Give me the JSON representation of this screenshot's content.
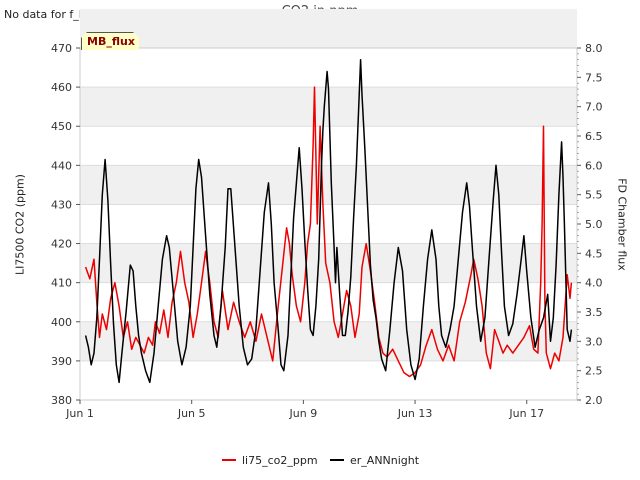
{
  "header": {
    "no_data_text": "No data for f_FD_Flux",
    "title": "CO2 in ppm",
    "badge": "MB_flux"
  },
  "colors": {
    "li75": "#ee0000",
    "ann": "#000000",
    "band": "#f0f0f0",
    "grid": "#dddddd"
  },
  "chart_data": {
    "type": "line",
    "title": "CO2 in ppm",
    "xlabel": "",
    "ylabel": "LI7500 CO2 (ppm)",
    "y2label": "FD Chamber flux",
    "xlim": [
      1,
      18.8
    ],
    "ylim": [
      380,
      470
    ],
    "y2lim": [
      2.0,
      8.0
    ],
    "x_ticks": [
      {
        "value": 1,
        "label": "Jun 1"
      },
      {
        "value": 5,
        "label": "Jun 5"
      },
      {
        "value": 9,
        "label": "Jun 9"
      },
      {
        "value": 13,
        "label": "Jun 13"
      },
      {
        "value": 17,
        "label": "Jun 17"
      }
    ],
    "y_ticks": [
      380,
      390,
      400,
      410,
      420,
      430,
      440,
      450,
      460,
      470
    ],
    "y2_ticks": [
      "2.0",
      "2.5",
      "3.0",
      "3.5",
      "4.0",
      "4.5",
      "5.0",
      "5.5",
      "6.0",
      "6.5",
      "7.0",
      "7.5",
      "8.0"
    ],
    "legend_position": "bottom-center",
    "series": [
      {
        "name": "li75_co2_ppm",
        "axis": "left",
        "points": [
          [
            1.2,
            414
          ],
          [
            1.35,
            411
          ],
          [
            1.5,
            416
          ],
          [
            1.6,
            405
          ],
          [
            1.7,
            396
          ],
          [
            1.8,
            402
          ],
          [
            1.95,
            398
          ],
          [
            2.1,
            406
          ],
          [
            2.25,
            410
          ],
          [
            2.4,
            404
          ],
          [
            2.55,
            396
          ],
          [
            2.7,
            400
          ],
          [
            2.85,
            393
          ],
          [
            3.0,
            396
          ],
          [
            3.15,
            394
          ],
          [
            3.3,
            392
          ],
          [
            3.45,
            396
          ],
          [
            3.6,
            394
          ],
          [
            3.7,
            400
          ],
          [
            3.85,
            397
          ],
          [
            4.0,
            403
          ],
          [
            4.15,
            396
          ],
          [
            4.3,
            405
          ],
          [
            4.45,
            410
          ],
          [
            4.6,
            418
          ],
          [
            4.75,
            410
          ],
          [
            4.9,
            405
          ],
          [
            5.05,
            396
          ],
          [
            5.2,
            402
          ],
          [
            5.35,
            410
          ],
          [
            5.5,
            418
          ],
          [
            5.65,
            410
          ],
          [
            5.8,
            400
          ],
          [
            5.95,
            396
          ],
          [
            6.1,
            408
          ],
          [
            6.3,
            398
          ],
          [
            6.5,
            405
          ],
          [
            6.7,
            400
          ],
          [
            6.9,
            396
          ],
          [
            7.1,
            400
          ],
          [
            7.3,
            395
          ],
          [
            7.5,
            402
          ],
          [
            7.7,
            396
          ],
          [
            7.9,
            390
          ],
          [
            8.1,
            404
          ],
          [
            8.25,
            414
          ],
          [
            8.4,
            424
          ],
          [
            8.5,
            420
          ],
          [
            8.6,
            412
          ],
          [
            8.75,
            404
          ],
          [
            8.9,
            400
          ],
          [
            9.05,
            410
          ],
          [
            9.15,
            420
          ],
          [
            9.25,
            425
          ],
          [
            9.35,
            445
          ],
          [
            9.4,
            460
          ],
          [
            9.5,
            425
          ],
          [
            9.6,
            450
          ],
          [
            9.7,
            430
          ],
          [
            9.8,
            415
          ],
          [
            9.95,
            410
          ],
          [
            10.1,
            400
          ],
          [
            10.25,
            396
          ],
          [
            10.4,
            402
          ],
          [
            10.55,
            408
          ],
          [
            10.7,
            404
          ],
          [
            10.85,
            396
          ],
          [
            11.0,
            402
          ],
          [
            11.1,
            414
          ],
          [
            11.25,
            420
          ],
          [
            11.4,
            413
          ],
          [
            11.55,
            405
          ],
          [
            11.7,
            396
          ],
          [
            11.85,
            392
          ],
          [
            12.0,
            391
          ],
          [
            12.2,
            393
          ],
          [
            12.4,
            390
          ],
          [
            12.6,
            387
          ],
          [
            12.8,
            386
          ],
          [
            13.0,
            387
          ],
          [
            13.2,
            389
          ],
          [
            13.4,
            394
          ],
          [
            13.6,
            398
          ],
          [
            13.8,
            393
          ],
          [
            14.0,
            390
          ],
          [
            14.2,
            394
          ],
          [
            14.4,
            390
          ],
          [
            14.6,
            400
          ],
          [
            14.8,
            405
          ],
          [
            15.0,
            412
          ],
          [
            15.1,
            416
          ],
          [
            15.25,
            411
          ],
          [
            15.4,
            404
          ],
          [
            15.55,
            392
          ],
          [
            15.7,
            388
          ],
          [
            15.85,
            398
          ],
          [
            16.0,
            395
          ],
          [
            16.15,
            392
          ],
          [
            16.3,
            394
          ],
          [
            16.5,
            392
          ],
          [
            16.7,
            394
          ],
          [
            16.9,
            396
          ],
          [
            17.1,
            399
          ],
          [
            17.25,
            393
          ],
          [
            17.4,
            392
          ],
          [
            17.5,
            410
          ],
          [
            17.55,
            425
          ],
          [
            17.6,
            450
          ],
          [
            17.65,
            405
          ],
          [
            17.7,
            392
          ],
          [
            17.85,
            388
          ],
          [
            18.0,
            392
          ],
          [
            18.15,
            390
          ],
          [
            18.3,
            396
          ],
          [
            18.45,
            412
          ],
          [
            18.55,
            406
          ],
          [
            18.6,
            410
          ]
        ]
      },
      {
        "name": "er_ANNnight",
        "axis": "right",
        "points": [
          [
            1.2,
            3.1
          ],
          [
            1.3,
            2.9
          ],
          [
            1.4,
            2.6
          ],
          [
            1.5,
            2.8
          ],
          [
            1.6,
            3.4
          ],
          [
            1.7,
            4.4
          ],
          [
            1.8,
            5.5
          ],
          [
            1.9,
            6.1
          ],
          [
            2.0,
            5.4
          ],
          [
            2.1,
            4.3
          ],
          [
            2.2,
            3.3
          ],
          [
            2.3,
            2.6
          ],
          [
            2.4,
            2.3
          ],
          [
            2.5,
            2.8
          ],
          [
            2.65,
            3.5
          ],
          [
            2.8,
            4.3
          ],
          [
            2.9,
            4.2
          ],
          [
            3.0,
            3.6
          ],
          [
            3.1,
            3.1
          ],
          [
            3.2,
            2.8
          ],
          [
            3.35,
            2.5
          ],
          [
            3.5,
            2.3
          ],
          [
            3.65,
            2.8
          ],
          [
            3.8,
            3.6
          ],
          [
            3.95,
            4.4
          ],
          [
            4.1,
            4.8
          ],
          [
            4.2,
            4.6
          ],
          [
            4.35,
            3.8
          ],
          [
            4.5,
            3.0
          ],
          [
            4.65,
            2.6
          ],
          [
            4.8,
            2.9
          ],
          [
            4.95,
            3.6
          ],
          [
            5.05,
            4.6
          ],
          [
            5.15,
            5.6
          ],
          [
            5.25,
            6.1
          ],
          [
            5.35,
            5.8
          ],
          [
            5.5,
            4.8
          ],
          [
            5.65,
            3.8
          ],
          [
            5.8,
            3.1
          ],
          [
            5.9,
            2.9
          ],
          [
            6.05,
            3.6
          ],
          [
            6.2,
            4.6
          ],
          [
            6.3,
            5.6
          ],
          [
            6.4,
            5.6
          ],
          [
            6.55,
            4.6
          ],
          [
            6.7,
            3.6
          ],
          [
            6.85,
            2.9
          ],
          [
            7.0,
            2.6
          ],
          [
            7.15,
            2.7
          ],
          [
            7.3,
            3.2
          ],
          [
            7.45,
            4.2
          ],
          [
            7.6,
            5.2
          ],
          [
            7.75,
            5.7
          ],
          [
            7.85,
            5.0
          ],
          [
            7.95,
            4.0
          ],
          [
            8.1,
            3.2
          ],
          [
            8.2,
            2.6
          ],
          [
            8.3,
            2.5
          ],
          [
            8.45,
            3.1
          ],
          [
            8.55,
            4.1
          ],
          [
            8.65,
            5.1
          ],
          [
            8.75,
            5.7
          ],
          [
            8.85,
            6.3
          ],
          [
            8.95,
            5.6
          ],
          [
            9.05,
            4.7
          ],
          [
            9.15,
            3.9
          ],
          [
            9.25,
            3.2
          ],
          [
            9.35,
            3.1
          ],
          [
            9.45,
            3.6
          ],
          [
            9.55,
            4.4
          ],
          [
            9.6,
            5.2
          ],
          [
            9.65,
            6.0
          ],
          [
            9.7,
            6.6
          ],
          [
            9.75,
            7.0
          ],
          [
            9.8,
            7.3
          ],
          [
            9.85,
            7.6
          ],
          [
            9.9,
            7.3
          ],
          [
            9.95,
            6.5
          ],
          [
            10.0,
            5.7
          ],
          [
            10.1,
            4.6
          ],
          [
            10.15,
            4.0
          ],
          [
            10.2,
            4.6
          ],
          [
            10.3,
            3.8
          ],
          [
            10.4,
            3.1
          ],
          [
            10.5,
            3.1
          ],
          [
            10.6,
            3.5
          ],
          [
            10.7,
            4.1
          ],
          [
            10.8,
            5.1
          ],
          [
            10.9,
            6.0
          ],
          [
            11.0,
            7.2
          ],
          [
            11.05,
            7.8
          ],
          [
            11.1,
            7.2
          ],
          [
            11.2,
            6.3
          ],
          [
            11.3,
            5.3
          ],
          [
            11.4,
            4.3
          ],
          [
            11.5,
            3.7
          ],
          [
            11.6,
            3.4
          ],
          [
            11.7,
            3.0
          ],
          [
            11.8,
            2.7
          ],
          [
            11.95,
            2.5
          ],
          [
            12.1,
            3.2
          ],
          [
            12.25,
            4.0
          ],
          [
            12.4,
            4.6
          ],
          [
            12.55,
            4.2
          ],
          [
            12.7,
            3.2
          ],
          [
            12.85,
            2.6
          ],
          [
            13.0,
            2.35
          ],
          [
            13.15,
            2.7
          ],
          [
            13.3,
            3.6
          ],
          [
            13.45,
            4.4
          ],
          [
            13.6,
            4.9
          ],
          [
            13.75,
            4.4
          ],
          [
            13.85,
            3.6
          ],
          [
            13.95,
            3.1
          ],
          [
            14.1,
            2.9
          ],
          [
            14.25,
            3.2
          ],
          [
            14.4,
            3.6
          ],
          [
            14.55,
            4.4
          ],
          [
            14.7,
            5.2
          ],
          [
            14.85,
            5.7
          ],
          [
            14.95,
            5.3
          ],
          [
            15.05,
            4.6
          ],
          [
            15.2,
            3.6
          ],
          [
            15.35,
            3.0
          ],
          [
            15.5,
            3.4
          ],
          [
            15.65,
            4.4
          ],
          [
            15.8,
            5.4
          ],
          [
            15.9,
            6.0
          ],
          [
            16.0,
            5.5
          ],
          [
            16.1,
            4.5
          ],
          [
            16.2,
            3.6
          ],
          [
            16.35,
            3.1
          ],
          [
            16.5,
            3.3
          ],
          [
            16.65,
            3.8
          ],
          [
            16.8,
            4.4
          ],
          [
            16.9,
            4.8
          ],
          [
            17.0,
            4.2
          ],
          [
            17.15,
            3.4
          ],
          [
            17.3,
            2.9
          ],
          [
            17.45,
            3.2
          ],
          [
            17.6,
            3.4
          ],
          [
            17.75,
            3.8
          ],
          [
            17.85,
            3.0
          ],
          [
            17.95,
            3.4
          ],
          [
            18.05,
            4.3
          ],
          [
            18.15,
            5.5
          ],
          [
            18.25,
            6.4
          ],
          [
            18.3,
            5.8
          ],
          [
            18.35,
            5.0
          ],
          [
            18.45,
            3.2
          ],
          [
            18.55,
            3.0
          ],
          [
            18.6,
            3.2
          ]
        ]
      }
    ]
  }
}
